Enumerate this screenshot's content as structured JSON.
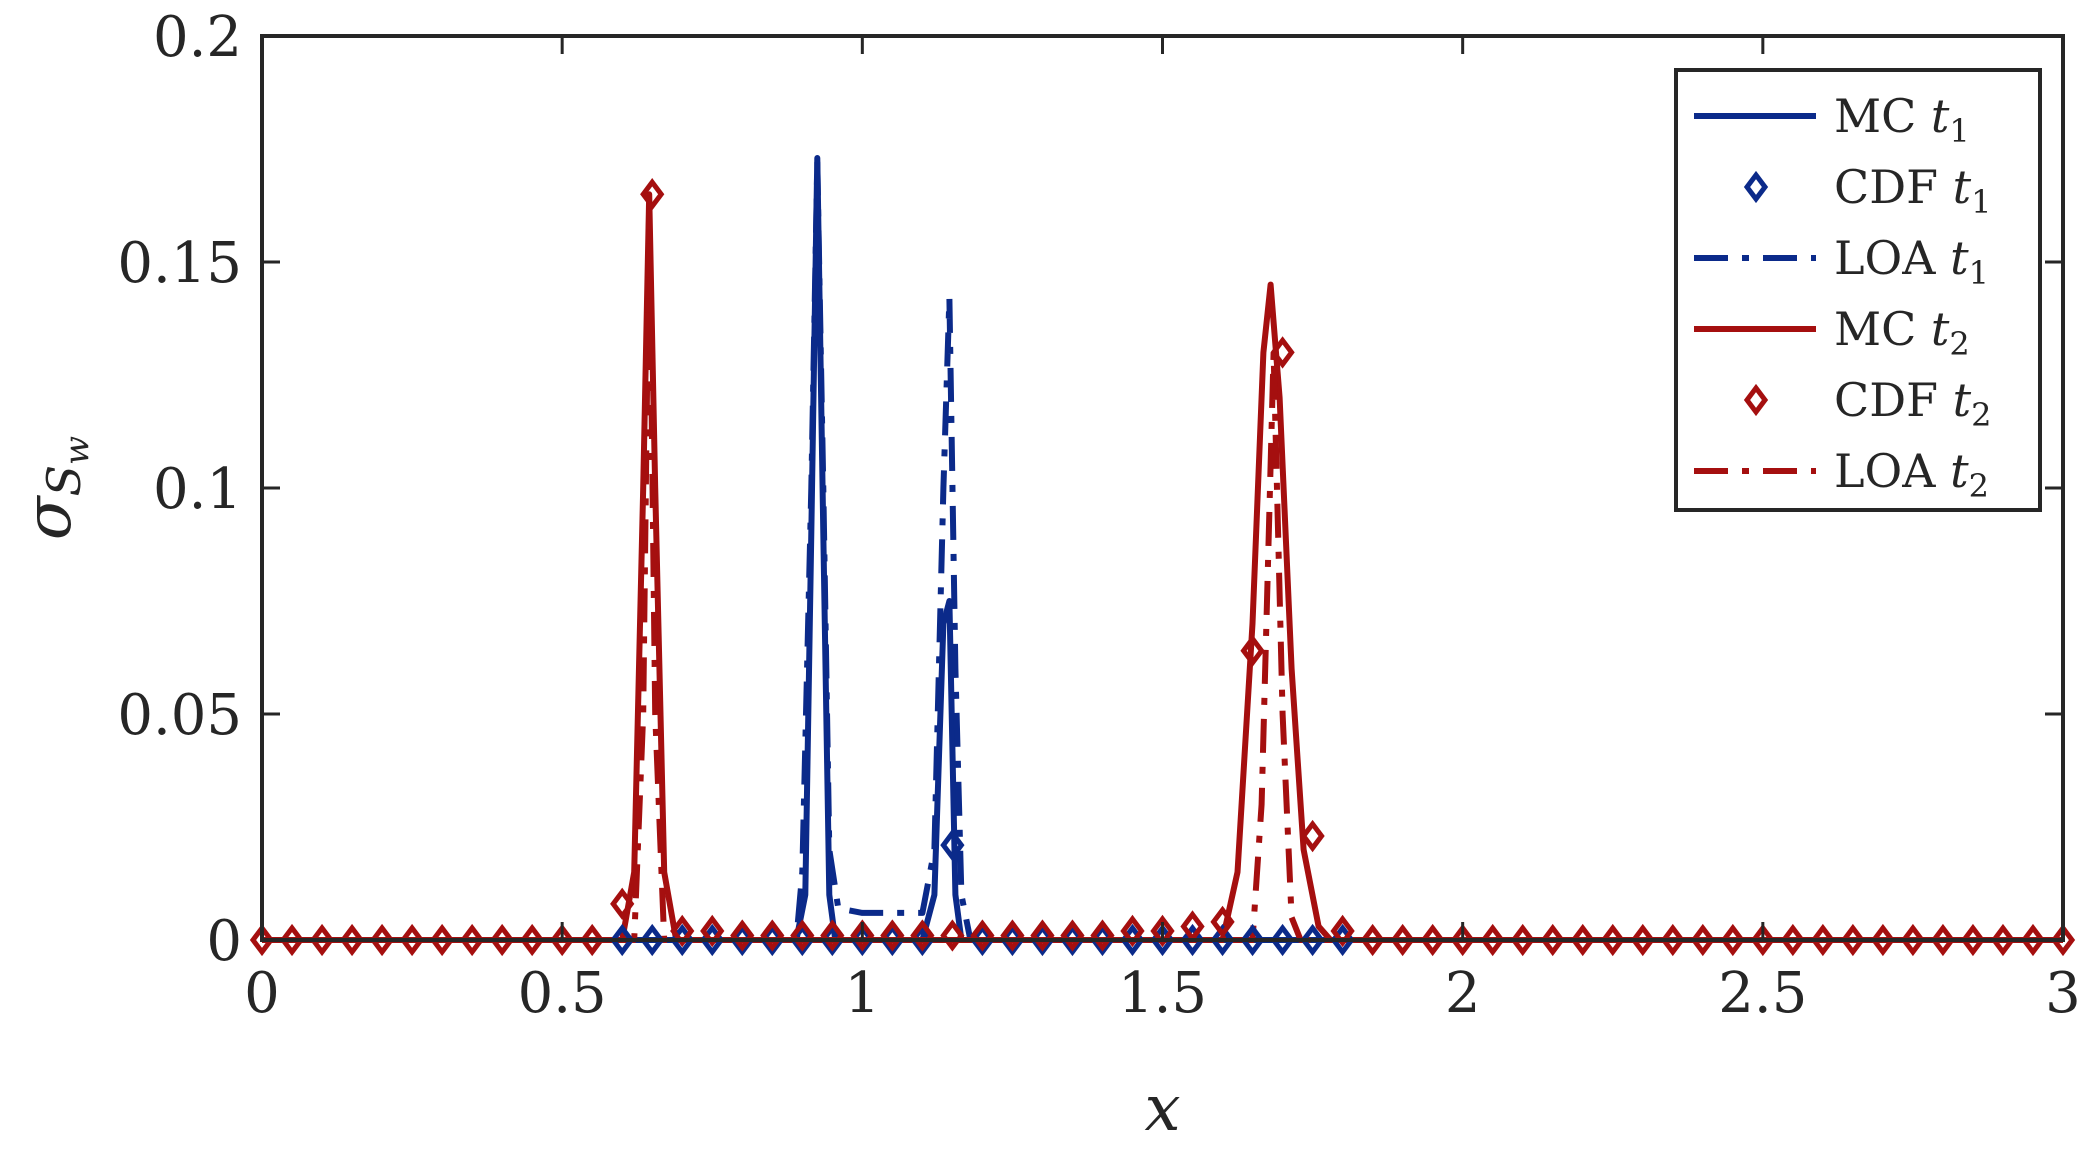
{
  "chart_data": {
    "type": "line",
    "title": "",
    "xlabel": "x",
    "ylabel": {
      "base": "σ",
      "sub": "S",
      "subsub": "w"
    },
    "xlim": [
      0,
      3
    ],
    "ylim": [
      0,
      0.2
    ],
    "xticks": [
      0,
      0.5,
      1,
      1.5,
      2,
      2.5,
      3
    ],
    "xtick_labels": [
      "0",
      "0.5",
      "1",
      "1.5",
      "2",
      "2.5",
      "3"
    ],
    "yticks": [
      0,
      0.05,
      0.1,
      0.15,
      0.2
    ],
    "ytick_labels": [
      "0",
      "0.05",
      "0.1",
      "0.15",
      "0.2"
    ],
    "grid": false,
    "legend_position": "top-right",
    "colors": {
      "blue": "#0b2a8a",
      "red": "#a50f0f",
      "axis": "#262626"
    },
    "series": [
      {
        "name": "MC t1",
        "label_main": "MC",
        "label_sub": "1",
        "color": "#0b2a8a",
        "style": "solid",
        "marker": "none",
        "points": [
          [
            0,
            0
          ],
          [
            0.89,
            0
          ],
          [
            0.905,
            0.01
          ],
          [
            0.915,
            0.09
          ],
          [
            0.925,
            0.173
          ],
          [
            0.935,
            0.09
          ],
          [
            0.945,
            0.01
          ],
          [
            0.955,
            0
          ],
          [
            1.1,
            0
          ],
          [
            1.12,
            0.01
          ],
          [
            1.135,
            0.07
          ],
          [
            1.145,
            0.075
          ],
          [
            1.155,
            0.01
          ],
          [
            1.165,
            0
          ],
          [
            3,
            0
          ]
        ]
      },
      {
        "name": "CDF t1",
        "label_main": "CDF",
        "label_sub": "1",
        "color": "#0b2a8a",
        "style": "none",
        "marker": "diamond",
        "points": [
          [
            0.6,
            0
          ],
          [
            0.65,
            0
          ],
          [
            0.7,
            0
          ],
          [
            0.75,
            0
          ],
          [
            0.8,
            0
          ],
          [
            0.85,
            0
          ],
          [
            0.9,
            0
          ],
          [
            0.95,
            0
          ],
          [
            1.0,
            0
          ],
          [
            1.05,
            0
          ],
          [
            1.1,
            0
          ],
          [
            1.15,
            0.021
          ],
          [
            1.2,
            0
          ],
          [
            1.25,
            0
          ],
          [
            1.3,
            0
          ],
          [
            1.35,
            0
          ],
          [
            1.4,
            0
          ],
          [
            1.45,
            0
          ],
          [
            1.5,
            0
          ],
          [
            1.55,
            0
          ],
          [
            1.6,
            0
          ],
          [
            1.65,
            0
          ],
          [
            1.7,
            0
          ],
          [
            1.75,
            0
          ],
          [
            1.8,
            0
          ]
        ]
      },
      {
        "name": "LOA t1",
        "label_main": "LOA",
        "label_sub": "1",
        "color": "#0b2a8a",
        "style": "dashdot",
        "marker": "none",
        "points": [
          [
            0,
            0
          ],
          [
            0.89,
            0
          ],
          [
            0.9,
            0.015
          ],
          [
            0.915,
            0.1
          ],
          [
            0.925,
            0.172
          ],
          [
            0.935,
            0.1
          ],
          [
            0.945,
            0.02
          ],
          [
            0.96,
            0.007
          ],
          [
            1.0,
            0.006
          ],
          [
            1.05,
            0.006
          ],
          [
            1.1,
            0.006
          ],
          [
            1.12,
            0.02
          ],
          [
            1.135,
            0.1
          ],
          [
            1.145,
            0.142
          ],
          [
            1.155,
            0.06
          ],
          [
            1.165,
            0.01
          ],
          [
            1.18,
            0
          ],
          [
            3,
            0
          ]
        ]
      },
      {
        "name": "MC t2",
        "label_main": "MC",
        "label_sub": "2",
        "color": "#a50f0f",
        "style": "solid",
        "marker": "none",
        "points": [
          [
            0,
            0
          ],
          [
            0.6,
            0
          ],
          [
            0.62,
            0.015
          ],
          [
            0.635,
            0.1
          ],
          [
            0.645,
            0.165
          ],
          [
            0.655,
            0.1
          ],
          [
            0.67,
            0.015
          ],
          [
            0.69,
            0
          ],
          [
            1.6,
            0
          ],
          [
            1.625,
            0.015
          ],
          [
            1.65,
            0.07
          ],
          [
            1.668,
            0.13
          ],
          [
            1.68,
            0.145
          ],
          [
            1.695,
            0.12
          ],
          [
            1.715,
            0.06
          ],
          [
            1.735,
            0.02
          ],
          [
            1.76,
            0.003
          ],
          [
            1.78,
            0
          ],
          [
            3,
            0
          ]
        ]
      },
      {
        "name": "CDF t2",
        "label_main": "CDF",
        "label_sub": "2",
        "color": "#a50f0f",
        "style": "none",
        "marker": "diamond",
        "points": [
          [
            0,
            0
          ],
          [
            0.05,
            0
          ],
          [
            0.1,
            0
          ],
          [
            0.15,
            0
          ],
          [
            0.2,
            0
          ],
          [
            0.25,
            0
          ],
          [
            0.3,
            0
          ],
          [
            0.35,
            0
          ],
          [
            0.4,
            0
          ],
          [
            0.45,
            0
          ],
          [
            0.5,
            0
          ],
          [
            0.55,
            0
          ],
          [
            0.6,
            0.008
          ],
          [
            0.65,
            0.165
          ],
          [
            0.7,
            0.002
          ],
          [
            0.75,
            0.002
          ],
          [
            0.8,
            0.001
          ],
          [
            0.85,
            0.001
          ],
          [
            0.9,
            0.001
          ],
          [
            0.95,
            0.001
          ],
          [
            1.0,
            0.001
          ],
          [
            1.05,
            0.001
          ],
          [
            1.1,
            0.001
          ],
          [
            1.15,
            0.001
          ],
          [
            1.2,
            0.001
          ],
          [
            1.25,
            0.001
          ],
          [
            1.3,
            0.001
          ],
          [
            1.35,
            0.001
          ],
          [
            1.4,
            0.001
          ],
          [
            1.45,
            0.002
          ],
          [
            1.5,
            0.002
          ],
          [
            1.55,
            0.003
          ],
          [
            1.6,
            0.004
          ],
          [
            1.65,
            0.064
          ],
          [
            1.7,
            0.13
          ],
          [
            1.75,
            0.023
          ],
          [
            1.8,
            0.002
          ],
          [
            1.85,
            0
          ],
          [
            1.9,
            0
          ],
          [
            1.95,
            0
          ],
          [
            2.0,
            0
          ],
          [
            2.05,
            0
          ],
          [
            2.1,
            0
          ],
          [
            2.15,
            0
          ],
          [
            2.2,
            0
          ],
          [
            2.25,
            0
          ],
          [
            2.3,
            0
          ],
          [
            2.35,
            0
          ],
          [
            2.4,
            0
          ],
          [
            2.45,
            0
          ],
          [
            2.5,
            0
          ],
          [
            2.55,
            0
          ],
          [
            2.6,
            0
          ],
          [
            2.65,
            0
          ],
          [
            2.7,
            0
          ],
          [
            2.75,
            0
          ],
          [
            2.8,
            0
          ],
          [
            2.85,
            0
          ],
          [
            2.9,
            0
          ],
          [
            2.95,
            0
          ],
          [
            3.0,
            0
          ]
        ]
      },
      {
        "name": "LOA t2",
        "label_main": "LOA",
        "label_sub": "2",
        "color": "#a50f0f",
        "style": "dashdot",
        "marker": "none",
        "points": [
          [
            0,
            0
          ],
          [
            0.62,
            0
          ],
          [
            0.635,
            0.05
          ],
          [
            0.645,
            0.163
          ],
          [
            0.655,
            0.05
          ],
          [
            0.67,
            0
          ],
          [
            1.65,
            0
          ],
          [
            1.665,
            0.03
          ],
          [
            1.685,
            0.13
          ],
          [
            1.7,
            0.05
          ],
          [
            1.715,
            0.005
          ],
          [
            1.73,
            0
          ],
          [
            3,
            0
          ]
        ]
      }
    ]
  }
}
